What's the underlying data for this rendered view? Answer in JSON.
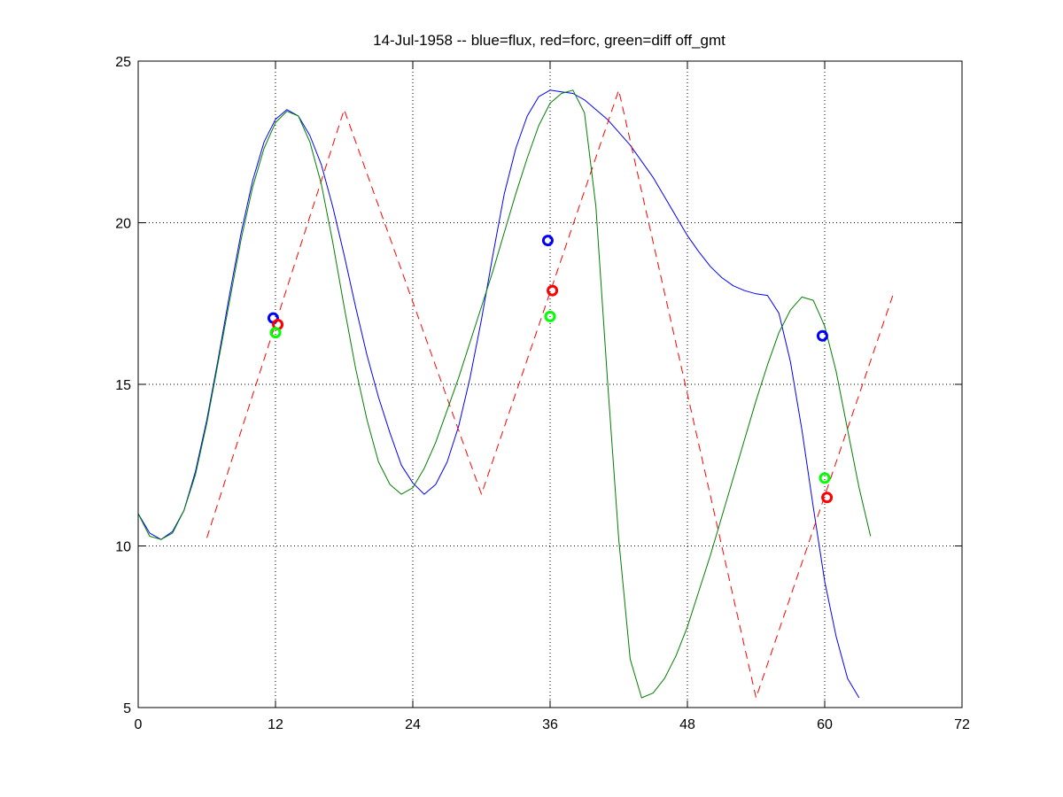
{
  "chart_data": {
    "type": "line",
    "title": "14-Jul-1958 -- blue=flux, red=forc, green=diff off_gmt",
    "xlabel": "",
    "ylabel": "",
    "xlim": [
      0,
      72
    ],
    "ylim": [
      5,
      25
    ],
    "x_ticks": [
      0,
      12,
      24,
      36,
      48,
      60,
      72
    ],
    "y_ticks": [
      5,
      10,
      15,
      20,
      25
    ],
    "grid": true,
    "grid_style": "dotted",
    "legend": "none",
    "series": [
      {
        "color": "#0000ff",
        "line_style": "solid",
        "points": [
          [
            0,
            11.0
          ],
          [
            1,
            10.4
          ],
          [
            2,
            10.2
          ],
          [
            3,
            10.45
          ],
          [
            4,
            11.1
          ],
          [
            5,
            12.3
          ],
          [
            6,
            13.9
          ],
          [
            7,
            15.8
          ],
          [
            8,
            17.8
          ],
          [
            9,
            19.7
          ],
          [
            10,
            21.3
          ],
          [
            11,
            22.5
          ],
          [
            12,
            23.2
          ],
          [
            13,
            23.5
          ],
          [
            14,
            23.3
          ],
          [
            15,
            22.7
          ],
          [
            16,
            21.8
          ],
          [
            17,
            20.5
          ],
          [
            18,
            19.0
          ],
          [
            19,
            17.4
          ],
          [
            20,
            15.9
          ],
          [
            21,
            14.6
          ],
          [
            22,
            13.5
          ],
          [
            23,
            12.5
          ],
          [
            24,
            11.95
          ],
          [
            25,
            11.6
          ],
          [
            26,
            11.9
          ],
          [
            27,
            12.6
          ],
          [
            28,
            13.7
          ],
          [
            29,
            15.2
          ],
          [
            30,
            17.0
          ],
          [
            31,
            19.0
          ],
          [
            32,
            20.9
          ],
          [
            33,
            22.3
          ],
          [
            34,
            23.3
          ],
          [
            35,
            23.9
          ],
          [
            36,
            24.1
          ],
          [
            37,
            24.05
          ],
          [
            38,
            24.0
          ],
          [
            39,
            23.8
          ],
          [
            40,
            23.5
          ],
          [
            41,
            23.2
          ],
          [
            42,
            22.8
          ],
          [
            43,
            22.4
          ],
          [
            44,
            21.9
          ],
          [
            45,
            21.4
          ],
          [
            46,
            20.8
          ],
          [
            47,
            20.2
          ],
          [
            48,
            19.6
          ],
          [
            49,
            19.1
          ],
          [
            50,
            18.65
          ],
          [
            51,
            18.3
          ],
          [
            52,
            18.05
          ],
          [
            53,
            17.9
          ],
          [
            54,
            17.8
          ],
          [
            55,
            17.75
          ],
          [
            56,
            17.2
          ],
          [
            57,
            15.7
          ],
          [
            58,
            13.6
          ],
          [
            59,
            11.2
          ],
          [
            60,
            8.9
          ],
          [
            61,
            7.2
          ],
          [
            62,
            5.9
          ],
          [
            63,
            5.3
          ]
        ]
      },
      {
        "color": "#ff0000",
        "line_style": "dashed",
        "points": [
          [
            6,
            10.25
          ],
          [
            18,
            23.5
          ],
          [
            30,
            11.6
          ],
          [
            42,
            24.1
          ],
          [
            54,
            5.3
          ],
          [
            66,
            17.8
          ]
        ]
      },
      {
        "color": "#008000",
        "line_style": "solid",
        "points": [
          [
            0,
            11.0
          ],
          [
            1,
            10.3
          ],
          [
            2,
            10.2
          ],
          [
            3,
            10.4
          ],
          [
            4,
            11.1
          ],
          [
            5,
            12.2
          ],
          [
            6,
            13.8
          ],
          [
            7,
            15.7
          ],
          [
            8,
            17.6
          ],
          [
            9,
            19.5
          ],
          [
            10,
            21.1
          ],
          [
            11,
            22.3
          ],
          [
            12,
            23.1
          ],
          [
            13,
            23.45
          ],
          [
            14,
            23.3
          ],
          [
            15,
            22.5
          ],
          [
            16,
            21.2
          ],
          [
            17,
            19.4
          ],
          [
            18,
            17.4
          ],
          [
            19,
            15.5
          ],
          [
            20,
            13.9
          ],
          [
            21,
            12.6
          ],
          [
            22,
            11.9
          ],
          [
            23,
            11.6
          ],
          [
            24,
            11.8
          ],
          [
            25,
            12.4
          ],
          [
            26,
            13.2
          ],
          [
            27,
            14.2
          ],
          [
            28,
            15.2
          ],
          [
            29,
            16.3
          ],
          [
            30,
            17.4
          ],
          [
            31,
            18.5
          ],
          [
            32,
            19.7
          ],
          [
            33,
            20.9
          ],
          [
            34,
            22.0
          ],
          [
            35,
            23.0
          ],
          [
            36,
            23.7
          ],
          [
            37,
            24.0
          ],
          [
            38,
            24.1
          ],
          [
            39,
            23.4
          ],
          [
            40,
            20.5
          ],
          [
            41,
            15.2
          ],
          [
            42,
            10.2
          ],
          [
            43,
            6.5
          ],
          [
            44,
            5.3
          ],
          [
            45,
            5.45
          ],
          [
            46,
            5.9
          ],
          [
            47,
            6.6
          ],
          [
            48,
            7.5
          ],
          [
            49,
            8.6
          ],
          [
            50,
            9.7
          ],
          [
            51,
            10.9
          ],
          [
            52,
            12.1
          ],
          [
            53,
            13.3
          ],
          [
            54,
            14.5
          ],
          [
            55,
            15.6
          ],
          [
            56,
            16.6
          ],
          [
            57,
            17.3
          ],
          [
            58,
            17.7
          ],
          [
            59,
            17.6
          ],
          [
            60,
            16.8
          ],
          [
            61,
            15.4
          ],
          [
            62,
            13.6
          ],
          [
            63,
            11.8
          ],
          [
            64,
            10.3
          ]
        ]
      }
    ],
    "markers": [
      {
        "x": 11.8,
        "y": 17.05,
        "color": "#0000ff"
      },
      {
        "x": 12.2,
        "y": 16.85,
        "color": "#ff0000"
      },
      {
        "x": 12.0,
        "y": 16.6,
        "color": "#00ff00"
      },
      {
        "x": 35.8,
        "y": 19.45,
        "color": "#0000ff"
      },
      {
        "x": 36.2,
        "y": 17.9,
        "color": "#ff0000"
      },
      {
        "x": 36.0,
        "y": 17.1,
        "color": "#00ff00"
      },
      {
        "x": 59.8,
        "y": 16.5,
        "color": "#0000ff"
      },
      {
        "x": 60.2,
        "y": 11.5,
        "color": "#ff0000"
      },
      {
        "x": 60.0,
        "y": 12.1,
        "color": "#00ff00"
      }
    ]
  }
}
